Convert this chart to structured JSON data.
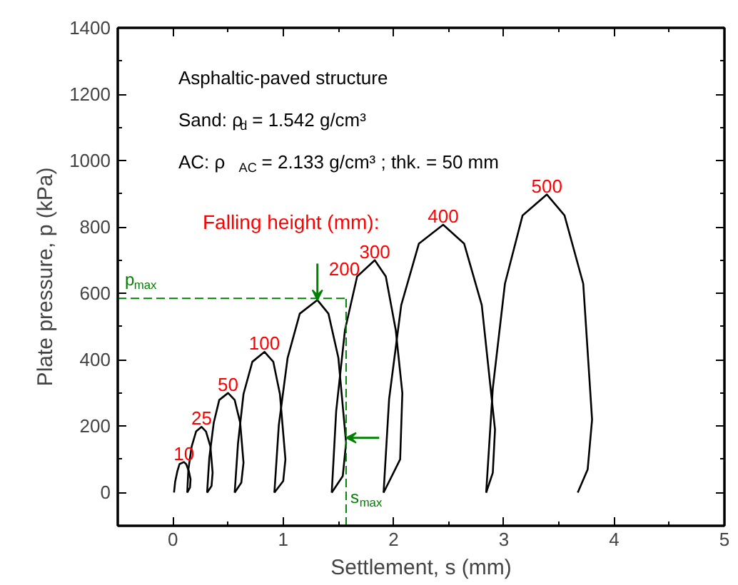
{
  "chart_data": {
    "type": "line",
    "xlabel": "Settlement, s (mm)",
    "ylabel": "Plate pressure, p (kPa)",
    "xlim": [
      -0.5,
      5
    ],
    "ylim": [
      -100,
      1400
    ],
    "xticks": [
      0,
      1,
      2,
      3,
      4,
      5
    ],
    "yticks": [
      0,
      200,
      400,
      600,
      800,
      1000,
      1200,
      1400
    ],
    "grid": false,
    "marker": "none",
    "line_style": "solid",
    "series": [
      {
        "name": "10",
        "color": "#000000",
        "x": [
          0.01,
          0.02,
          0.04,
          0.06,
          0.1,
          0.12,
          0.145,
          0.16,
          0.155,
          0.13
        ],
        "values": [
          0,
          32,
          64,
          86,
          92,
          86,
          64,
          40,
          15,
          0
        ]
      },
      {
        "name": "25",
        "color": "#000000",
        "x": [
          0.13,
          0.14,
          0.17,
          0.21,
          0.26,
          0.3,
          0.34,
          0.36,
          0.35,
          0.31
        ],
        "values": [
          0,
          69,
          139,
          184,
          198,
          184,
          139,
          60,
          20,
          0
        ]
      },
      {
        "name": "50",
        "color": "#000000",
        "x": [
          0.31,
          0.33,
          0.37,
          0.42,
          0.5,
          0.56,
          0.61,
          0.64,
          0.62,
          0.56
        ],
        "values": [
          0,
          105,
          210,
          279,
          300,
          279,
          210,
          90,
          30,
          0
        ]
      },
      {
        "name": "100",
        "color": "#000000",
        "x": [
          0.56,
          0.59,
          0.64,
          0.72,
          0.83,
          0.91,
          0.97,
          1.02,
          1.0,
          0.92
        ],
        "values": [
          0,
          148,
          297,
          394,
          424,
          394,
          297,
          100,
          35,
          0
        ]
      },
      {
        "name": "200",
        "color": "#000000",
        "x": [
          0.92,
          0.96,
          1.04,
          1.15,
          1.31,
          1.41,
          1.5,
          1.57,
          1.54,
          1.44
        ],
        "values": [
          0,
          203,
          406,
          539,
          580,
          539,
          406,
          150,
          50,
          0
        ]
      },
      {
        "name": "300",
        "color": "#000000",
        "x": [
          1.44,
          1.48,
          1.56,
          1.67,
          1.83,
          1.93,
          2.02,
          2.08,
          2.06,
          1.91
        ],
        "values": [
          0,
          245,
          490,
          651,
          700,
          651,
          490,
          300,
          100,
          0
        ]
      },
      {
        "name": "400",
        "color": "#000000",
        "x": [
          1.91,
          1.96,
          2.07,
          2.23,
          2.45,
          2.64,
          2.8,
          2.92,
          2.9,
          2.84
        ],
        "values": [
          0,
          282,
          565,
          750,
          807,
          750,
          565,
          190,
          60,
          0
        ]
      },
      {
        "name": "500",
        "color": "#000000",
        "x": [
          2.84,
          2.9,
          3.01,
          3.17,
          3.39,
          3.55,
          3.72,
          3.8,
          3.76,
          3.67
        ],
        "values": [
          0,
          314,
          629,
          835,
          898,
          835,
          629,
          220,
          70,
          0
        ]
      }
    ],
    "ref_lines": [
      {
        "axis": "y",
        "value": 585,
        "label": "p$_{max}$",
        "color": "#008000",
        "line_style": "dashed"
      },
      {
        "axis": "x",
        "value": 1.57,
        "label": "s$_{max}$",
        "color": "#008000",
        "line_style": "dashed"
      }
    ],
    "annotations": [
      "Asphaltic-paved structure",
      "Sand: ρ$_{d}$ = 1.542 g/cm³",
      "AC:    ρ$_{AC}$ = 2.133 g/cm³ ; thk. = 50 mm",
      "Falling height (mm):"
    ]
  }
}
